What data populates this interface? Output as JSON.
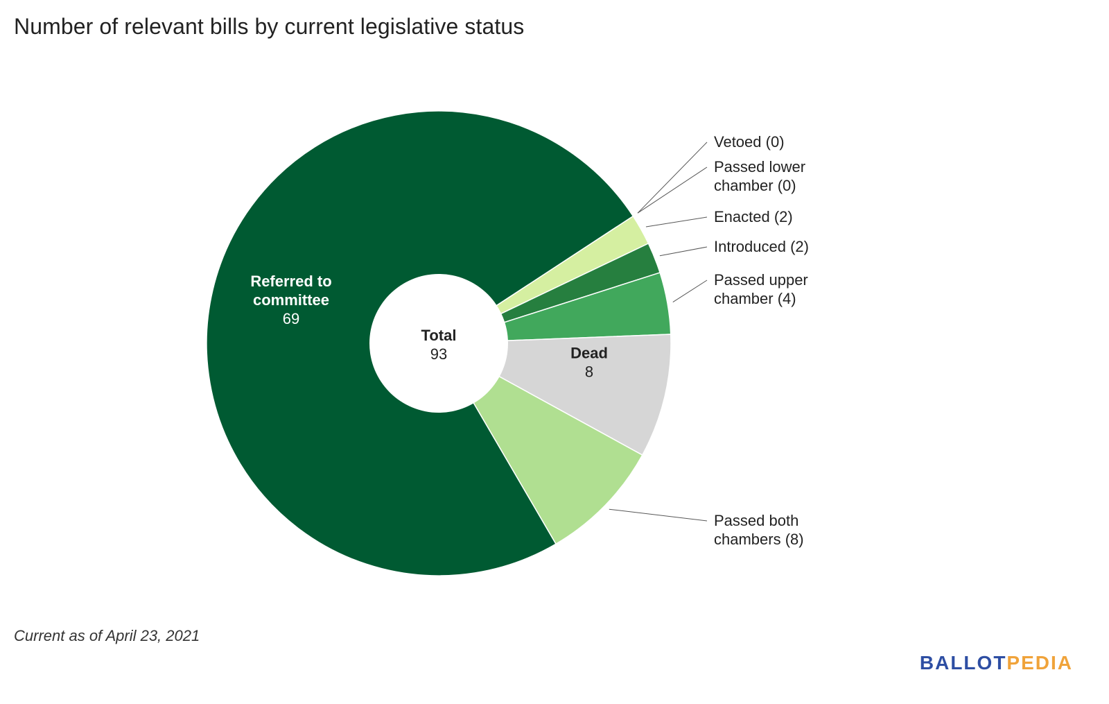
{
  "title": "Number of relevant bills by current legislative status",
  "footnote": "Current as of April 23, 2021",
  "logo": {
    "part1": "BALLOT",
    "part2": "PEDIA",
    "color1": "#2e4ea3",
    "color2": "#f0a33a"
  },
  "chart_data": {
    "type": "pie",
    "donut": true,
    "center_label": {
      "title": "Total",
      "value": "93"
    },
    "slices": [
      {
        "label": "Vetoed",
        "value": 0,
        "color": "#d5efa1",
        "label_lines": [
          "Vetoed (0)"
        ],
        "placement": "outside"
      },
      {
        "label": "Passed lower chamber",
        "value": 0,
        "color": "#d5efa1",
        "label_lines": [
          "Passed lower",
          "chamber (0)"
        ],
        "placement": "outside"
      },
      {
        "label": "Enacted",
        "value": 2,
        "color": "#d5efa1",
        "label_lines": [
          "Enacted (2)"
        ],
        "placement": "outside"
      },
      {
        "label": "Introduced",
        "value": 2,
        "color": "#267f3f",
        "label_lines": [
          "Introduced (2)"
        ],
        "placement": "outside"
      },
      {
        "label": "Passed upper chamber",
        "value": 4,
        "color": "#41a85c",
        "label_lines": [
          "Passed upper",
          "chamber (4)"
        ],
        "placement": "outside"
      },
      {
        "label": "Dead",
        "value": 8,
        "color": "#d6d6d6",
        "label_lines": [
          "Dead"
        ],
        "value_text": "8",
        "placement": "inside",
        "text_color": "#222222"
      },
      {
        "label": "Passed both chambers",
        "value": 8,
        "color": "#b0df91",
        "label_lines": [
          "Passed both",
          "chambers (8)"
        ],
        "placement": "outside"
      },
      {
        "label": "Referred to committee",
        "value": 69,
        "color": "#005a32",
        "label_lines": [
          "Referred to",
          "committee"
        ],
        "value_text": "69",
        "placement": "inside",
        "text_color": "#ffffff"
      }
    ]
  }
}
